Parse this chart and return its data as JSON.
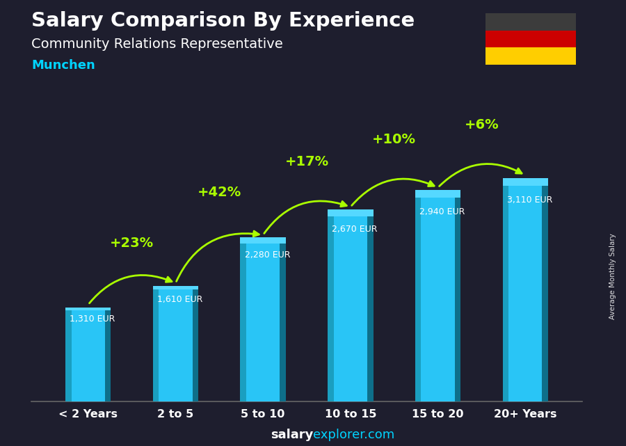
{
  "title": "Salary Comparison By Experience",
  "subtitle": "Community Relations Representative",
  "city": "Munchen",
  "categories": [
    "< 2 Years",
    "2 to 5",
    "5 to 10",
    "10 to 15",
    "15 to 20",
    "20+ Years"
  ],
  "values": [
    1310,
    1610,
    2280,
    2670,
    2940,
    3110
  ],
  "pct_changes": [
    "+23%",
    "+42%",
    "+17%",
    "+10%",
    "+6%"
  ],
  "bar_color_main": "#29c5f6",
  "bar_color_left": "#1a9fc0",
  "bar_color_right": "#0e6f8a",
  "bar_color_top": "#55d8ff",
  "bg_color": "#1e1e2e",
  "title_color": "#ffffff",
  "subtitle_color": "#ffffff",
  "city_color": "#00d4ff",
  "pct_color": "#aaff00",
  "value_color": "#ffffff",
  "side_label": "Average Monthly Salary",
  "ylim_max": 3600,
  "bar_width": 0.52,
  "arc_rad": -0.4,
  "flag_black": "#3c3c3c",
  "flag_red": "#CC0000",
  "flag_gold": "#FFCE00"
}
